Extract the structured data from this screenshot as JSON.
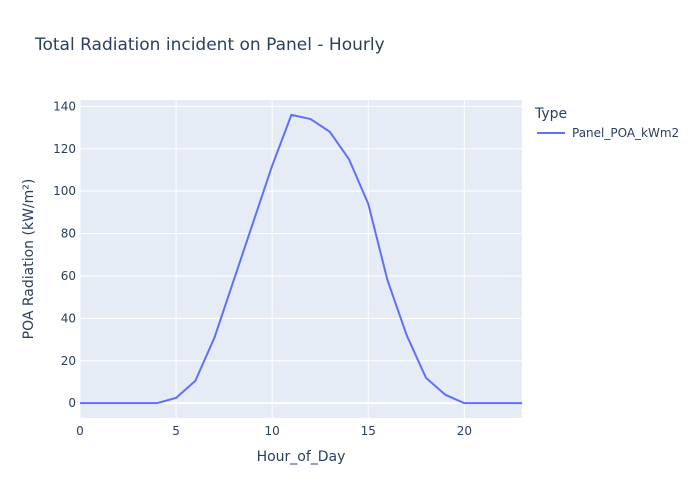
{
  "chart_data": {
    "type": "line",
    "title": "Total Radiation incident on Panel - Hourly",
    "xlabel": "Hour_of_Day",
    "ylabel": "POA Radiation (kW/m²)",
    "xlim": [
      0,
      23
    ],
    "ylim": [
      -7,
      143
    ],
    "x_ticks": [
      0,
      5,
      10,
      15,
      20
    ],
    "y_ticks": [
      0,
      20,
      40,
      60,
      80,
      100,
      120,
      140
    ],
    "grid": true,
    "legend_title": "Type",
    "legend_position": "top-right outside",
    "x": [
      0,
      1,
      2,
      3,
      4,
      5,
      6,
      7,
      8,
      9,
      10,
      11,
      12,
      13,
      14,
      15,
      16,
      17,
      18,
      19,
      20,
      21,
      22,
      23
    ],
    "series": [
      {
        "name": "Panel_POA_kWm2",
        "color": "#636efa",
        "values": [
          0,
          0,
          0,
          0,
          0,
          2.5,
          10.5,
          31,
          58,
          85,
          112,
          136,
          134,
          128,
          115,
          94,
          58,
          32,
          12,
          4,
          0,
          0,
          0,
          0
        ]
      }
    ]
  }
}
